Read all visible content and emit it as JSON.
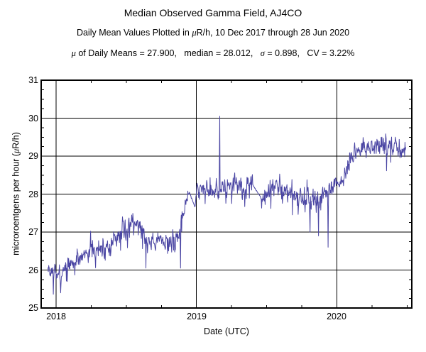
{
  "header": {
    "title": "Median Observed Gamma Field, AJ4CO",
    "subtitle_segments": [
      {
        "t": "Daily Mean Values Plotted in "
      },
      {
        "t": "μ",
        "i": true
      },
      {
        "t": "R/h, 10 Dec 2017 through 28 Jun 2020"
      }
    ],
    "stats_segments": [
      {
        "t": "μ",
        "i": true
      },
      {
        "t": " of Daily Means = 27.900,   median = 28.012,   "
      },
      {
        "t": "σ",
        "i": true
      },
      {
        "t": " = 0.898,   CV = 3.22%"
      }
    ]
  },
  "chart_data": {
    "type": "line",
    "title": "Median Observed Gamma Field, AJ4CO",
    "subtitle": "Daily Mean Values Plotted in μR/h, 10 Dec 2017 through 28 Jun 2020",
    "stats": {
      "mean_of_daily_means": 27.9,
      "median": 28.012,
      "sigma": 0.898,
      "cv_percent": 3.22
    },
    "x_title": "Date (UTC)",
    "y_title_segments": [
      {
        "t": "microroentgens per hour ("
      },
      {
        "t": "μ",
        "i": true
      },
      {
        "t": "R/h)"
      }
    ],
    "xlim": [
      2017.894,
      2020.534
    ],
    "ylim": [
      25,
      31
    ],
    "x_ticks": [
      2018,
      2019,
      2020
    ],
    "x_tick_labels": [
      "2018",
      "2019",
      "2020"
    ],
    "x_minor_step_years": 0.25,
    "y_ticks": [
      25,
      26,
      27,
      28,
      29,
      30,
      31
    ],
    "y_tick_labels": [
      "25",
      "26",
      "27",
      "28",
      "29",
      "30",
      "31"
    ],
    "y_minor_step": 0.25,
    "grid": true,
    "legend": "none",
    "line_color": "#4a45a3",
    "series": [
      {
        "name": "daily-mean-gamma",
        "start_date": "2017-12-10",
        "end_date": "2020-06-28",
        "cadence": "daily",
        "x_start": 2017.942,
        "x_end": 2020.491,
        "trend_anchors": [
          [
            2017.942,
            26.0
          ],
          [
            2018.0,
            25.95
          ],
          [
            2018.03,
            25.75
          ],
          [
            2018.06,
            26.05
          ],
          [
            2018.12,
            26.2
          ],
          [
            2018.2,
            26.45
          ],
          [
            2018.28,
            26.55
          ],
          [
            2018.35,
            26.65
          ],
          [
            2018.42,
            26.8
          ],
          [
            2018.5,
            27.15
          ],
          [
            2018.56,
            27.4
          ],
          [
            2018.62,
            26.9
          ],
          [
            2018.7,
            26.75
          ],
          [
            2018.78,
            26.75
          ],
          [
            2018.84,
            26.7
          ],
          [
            2018.88,
            27.0
          ],
          [
            2018.93,
            27.9
          ],
          [
            2018.95,
            28.05
          ],
          [
            2018.99,
            27.65
          ],
          [
            2019.0,
            28.1
          ],
          [
            2019.08,
            28.2
          ],
          [
            2019.17,
            28.1
          ],
          [
            2019.25,
            28.3
          ],
          [
            2019.33,
            28.15
          ],
          [
            2019.4,
            28.25
          ],
          [
            2019.46,
            27.9
          ],
          [
            2019.52,
            28.2
          ],
          [
            2019.6,
            28.15
          ],
          [
            2019.68,
            28.05
          ],
          [
            2019.75,
            27.9
          ],
          [
            2019.82,
            27.85
          ],
          [
            2019.88,
            27.9
          ],
          [
            2019.94,
            28.05
          ],
          [
            2020.0,
            28.3
          ],
          [
            2020.05,
            28.4
          ],
          [
            2020.1,
            28.9
          ],
          [
            2020.14,
            29.15
          ],
          [
            2020.2,
            29.2
          ],
          [
            2020.28,
            29.25
          ],
          [
            2020.33,
            29.3
          ],
          [
            2020.4,
            29.2
          ],
          [
            2020.45,
            29.2
          ],
          [
            2020.491,
            29.15
          ]
        ],
        "events": [
          {
            "x": 2018.032,
            "y": 25.4
          },
          {
            "x": 2018.64,
            "y": 26.05
          },
          {
            "x": 2018.887,
            "y": 26.05
          },
          {
            "x": 2019.166,
            "y": 30.05
          },
          {
            "x": 2019.81,
            "y": 27.0
          },
          {
            "x": 2019.87,
            "y": 26.9
          },
          {
            "x": 2019.937,
            "y": 26.6
          }
        ],
        "smooth_gaps": [
          [
            2018.945,
            2018.995
          ],
          [
            2019.4,
            2019.46
          ]
        ],
        "noise_sigma": 0.13,
        "noise_seed": 7
      }
    ]
  }
}
